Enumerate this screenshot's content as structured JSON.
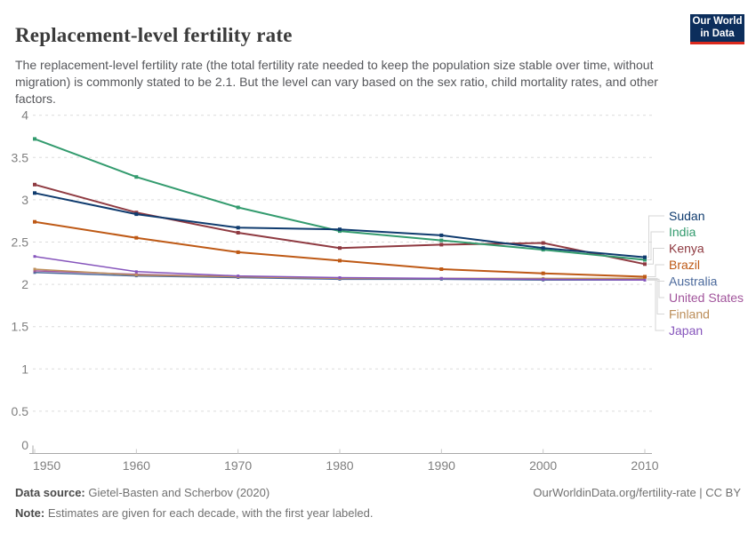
{
  "header": {
    "title": "Replacement-level fertility rate",
    "subtitle": "The replacement-level fertility rate (the total fertility rate needed to keep the population size stable over time, without migration) is commonly stated to be 2.1. But the level can vary based on the sex ratio, child mortality rates, and other factors.",
    "logo": {
      "line1": "Our World",
      "line2": "in Data",
      "bg_color": "#0c2e5c",
      "accent_color": "#dc2a1d"
    }
  },
  "chart_data": {
    "type": "line",
    "title": "Replacement-level fertility rate",
    "x": [
      1950,
      1960,
      1970,
      1980,
      1990,
      2000,
      2010
    ],
    "x_tick_labels": [
      "1950",
      "1960",
      "1970",
      "1980",
      "1990",
      "2000",
      "2010"
    ],
    "y_ticks": [
      0,
      0.5,
      1,
      1.5,
      2,
      2.5,
      3,
      3.5,
      4
    ],
    "y_tick_labels": [
      "0",
      "0.5",
      "1",
      "1.5",
      "2",
      "2.5",
      "3",
      "3.5",
      "4"
    ],
    "ylim": [
      0,
      4
    ],
    "xlim": [
      1950,
      2010
    ],
    "grid": "horizontal-dashed",
    "legend_position": "right",
    "series": [
      {
        "name": "Sudan",
        "color": "#0f3b6e",
        "values": [
          3.08,
          2.83,
          2.67,
          2.65,
          2.58,
          2.43,
          2.32
        ]
      },
      {
        "name": "India",
        "color": "#339b6e",
        "values": [
          3.72,
          3.27,
          2.91,
          2.63,
          2.52,
          2.41,
          2.29
        ]
      },
      {
        "name": "Kenya",
        "color": "#8f3a41",
        "values": [
          3.18,
          2.85,
          2.61,
          2.43,
          2.47,
          2.49,
          2.24
        ]
      },
      {
        "name": "Brazil",
        "color": "#be5915",
        "values": [
          2.74,
          2.55,
          2.38,
          2.28,
          2.18,
          2.13,
          2.09
        ]
      },
      {
        "name": "Australia",
        "color": "#4c6a9c",
        "values": [
          2.14,
          2.1,
          2.08,
          2.06,
          2.06,
          2.05,
          2.05
        ]
      },
      {
        "name": "United States",
        "color": "#a2559c",
        "values": [
          2.16,
          2.12,
          2.09,
          2.07,
          2.07,
          2.06,
          2.06
        ]
      },
      {
        "name": "Finland",
        "color": "#bc8e5a",
        "values": [
          2.18,
          2.11,
          2.09,
          2.07,
          2.07,
          2.07,
          2.07
        ]
      },
      {
        "name": "Japan",
        "color": "#8655bc",
        "values": [
          2.33,
          2.15,
          2.1,
          2.08,
          2.07,
          2.06,
          2.05
        ]
      }
    ]
  },
  "footer": {
    "source_label": "Data source:",
    "source_text": " Gietel-Basten and Scherbov (2020)",
    "link_text": "OurWorldinData.org/fertility-rate | CC BY",
    "note_label": "Note:",
    "note_text": " Estimates are given for each decade, with the first year labeled."
  }
}
